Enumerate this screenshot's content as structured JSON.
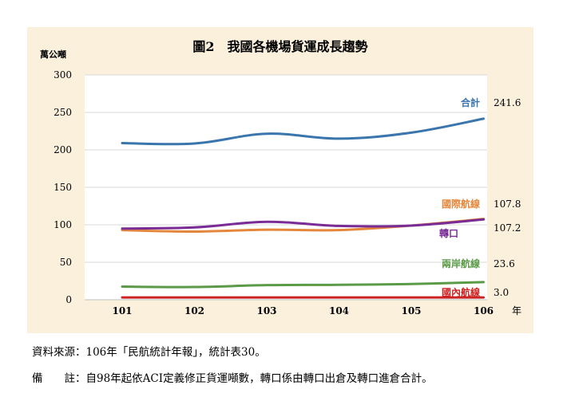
{
  "chart_data": {
    "type": "line",
    "title": "圖2　我國各機場貨運成長趨勢",
    "ylabel": "萬公噸",
    "xlabel": "年",
    "categories": [
      "101",
      "102",
      "103",
      "104",
      "105",
      "106"
    ],
    "ylim": [
      0,
      300
    ],
    "yticks": [
      "0",
      "50",
      "100",
      "150",
      "200",
      "250",
      "300"
    ],
    "grid": true,
    "series": [
      {
        "name": "合計",
        "values": [
          209.0,
          208.5,
          221.5,
          215.0,
          223.0,
          241.6
        ],
        "color": "#3b75ad",
        "end_label": "241.6"
      },
      {
        "name": "國際航線",
        "values": [
          93.0,
          91.0,
          93.5,
          93.0,
          99.0,
          107.8
        ],
        "color": "#e4873c",
        "end_label": "107.8"
      },
      {
        "name": "轉口",
        "values": [
          95.0,
          96.5,
          104.0,
          98.5,
          99.0,
          107.2
        ],
        "color": "#7a2c96",
        "end_label": "107.2"
      },
      {
        "name": "兩岸航線",
        "values": [
          17.5,
          17.0,
          19.5,
          20.0,
          21.0,
          23.6
        ],
        "color": "#5b9a47",
        "end_label": "23.6"
      },
      {
        "name": "國內航線",
        "values": [
          3.0,
          3.0,
          3.0,
          3.0,
          3.0,
          3.0
        ],
        "color": "#cc2222",
        "end_label": "3.0"
      }
    ]
  },
  "notes": {
    "source": "資料來源：106年「民航統計年報」，統計表30。",
    "remark": "備　　註：自98年起依ACI定義修正貨運噸數，轉口係由轉口出倉及轉口進倉合計。"
  }
}
